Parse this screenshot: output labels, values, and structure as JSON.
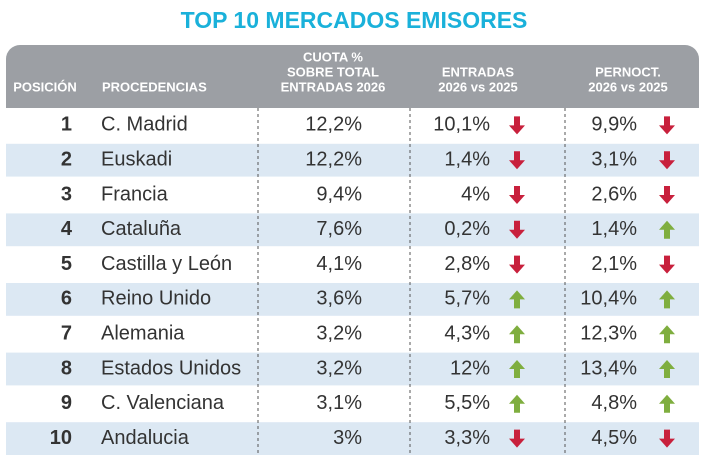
{
  "title": "TOP 10 MERCADOS EMISORES",
  "headers": [
    {
      "lines": [
        "POSICIÓN"
      ]
    },
    {
      "lines": [
        "PROCEDENCIAS"
      ]
    },
    {
      "lines": [
        "CUOTA %",
        "SOBRE TOTAL",
        "ENTRADAS 2026"
      ]
    },
    {
      "lines": [
        "ENTRADAS",
        "2026 vs 2025"
      ]
    },
    {
      "lines": [
        "PERNOCT.",
        "2026 vs 2025"
      ]
    }
  ],
  "rows": [
    {
      "position": 1,
      "name": "C. Madrid",
      "cuota": "12,2%",
      "entradas": "10,1%",
      "entradas_arrow": "down",
      "pernoct": "9,9%",
      "pernoct_arrow": "down"
    },
    {
      "position": 2,
      "name": "Euskadi",
      "cuota": "12,2%",
      "entradas": "1,4%",
      "entradas_arrow": "down",
      "pernoct": "3,1%",
      "pernoct_arrow": "down"
    },
    {
      "position": 3,
      "name": "Francia",
      "cuota": "9,4%",
      "entradas": "4%",
      "entradas_arrow": "down",
      "pernoct": "2,6%",
      "pernoct_arrow": "down"
    },
    {
      "position": 4,
      "name": "Cataluña",
      "cuota": "7,6%",
      "entradas": "0,2%",
      "entradas_arrow": "down",
      "pernoct": "1,4%",
      "pernoct_arrow": "up"
    },
    {
      "position": 5,
      "name": "Castilla y León",
      "cuota": "4,1%",
      "entradas": "2,8%",
      "entradas_arrow": "down",
      "pernoct": "2,1%",
      "pernoct_arrow": "down"
    },
    {
      "position": 6,
      "name": "Reino Unido",
      "cuota": "3,6%",
      "entradas": "5,7%",
      "entradas_arrow": "up",
      "pernoct": "10,4%",
      "pernoct_arrow": "up"
    },
    {
      "position": 7,
      "name": "Alemania",
      "cuota": "3,2%",
      "entradas": "4,3%",
      "entradas_arrow": "up",
      "pernoct": "12,3%",
      "pernoct_arrow": "up"
    },
    {
      "position": 8,
      "name": "Estados Unidos",
      "cuota": "3,2%",
      "entradas": "12%",
      "entradas_arrow": "up",
      "pernoct": "13,4%",
      "pernoct_arrow": "up"
    },
    {
      "position": 9,
      "name": "C. Valenciana",
      "cuota": "3,1%",
      "entradas": "5,5%",
      "entradas_arrow": "up",
      "pernoct": "4,8%",
      "pernoct_arrow": "up"
    },
    {
      "position": 10,
      "name": "Andalucia",
      "cuota": "3%",
      "entradas": "3,3%",
      "entradas_arrow": "down",
      "pernoct": "4,5%",
      "pernoct_arrow": "down"
    }
  ]
}
